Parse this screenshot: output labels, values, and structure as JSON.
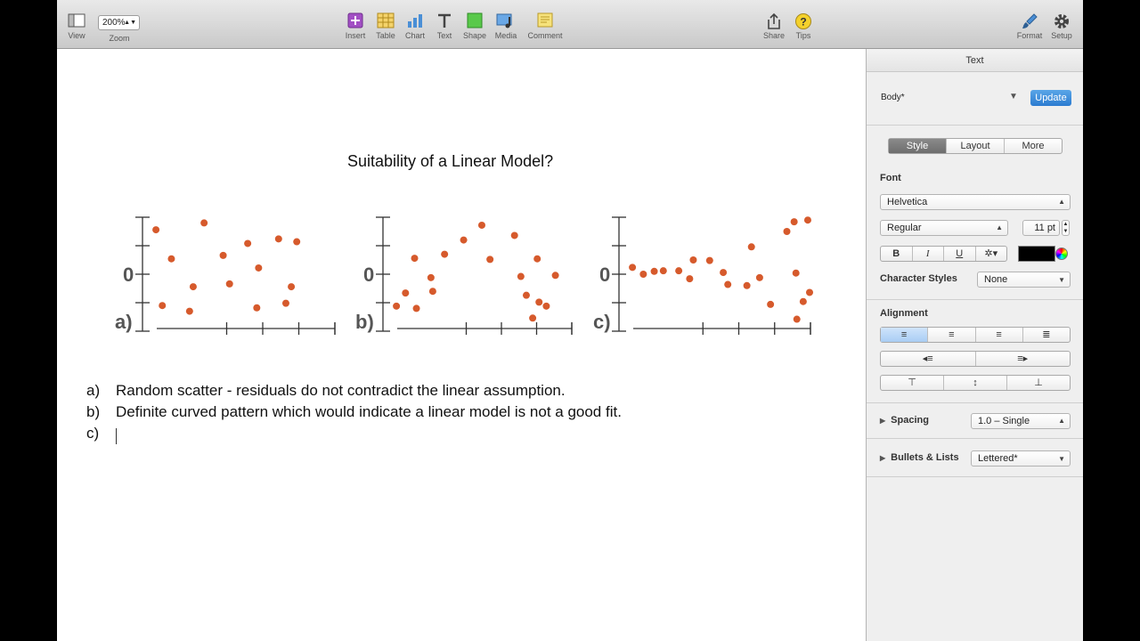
{
  "toolbar": {
    "view": "View",
    "zoom_label": "Zoom",
    "zoom_value": "200%",
    "insert": "Insert",
    "table": "Table",
    "chart": "Chart",
    "text": "Text",
    "shape": "Shape",
    "media": "Media",
    "comment": "Comment",
    "share": "Share",
    "tips": "Tips",
    "format": "Format",
    "setup": "Setup"
  },
  "document": {
    "title": "Suitability of a Linear Model?",
    "plots": [
      {
        "label": "a)",
        "zero": "0",
        "points": [
          [
            0.05,
            0.78
          ],
          [
            0.12,
            -0.55
          ],
          [
            0.22,
            0.27
          ],
          [
            0.42,
            -0.65
          ],
          [
            0.46,
            -0.22
          ],
          [
            0.58,
            0.9
          ],
          [
            0.79,
            0.33
          ],
          [
            0.86,
            -0.17
          ],
          [
            1.06,
            0.54
          ],
          [
            1.16,
            -0.59
          ],
          [
            1.18,
            0.11
          ],
          [
            1.4,
            0.62
          ],
          [
            1.48,
            -0.51
          ],
          [
            1.54,
            -0.22
          ],
          [
            1.6,
            0.57
          ]
        ]
      },
      {
        "label": "b)",
        "zero": "0",
        "points": [
          [
            0.05,
            -0.56
          ],
          [
            0.15,
            -0.33
          ],
          [
            0.25,
            0.28
          ],
          [
            0.27,
            -0.6
          ],
          [
            0.43,
            -0.06
          ],
          [
            0.45,
            -0.3
          ],
          [
            0.58,
            0.35
          ],
          [
            0.79,
            0.6
          ],
          [
            0.99,
            0.86
          ],
          [
            1.08,
            0.26
          ],
          [
            1.35,
            0.68
          ],
          [
            1.42,
            -0.04
          ],
          [
            1.48,
            -0.37
          ],
          [
            1.55,
            -0.77
          ],
          [
            1.6,
            0.27
          ],
          [
            1.62,
            -0.49
          ],
          [
            1.7,
            -0.56
          ],
          [
            1.8,
            -0.02
          ]
        ]
      },
      {
        "label": "c)",
        "zero": "0",
        "points": [
          [
            0.05,
            0.12
          ],
          [
            0.17,
            0.0
          ],
          [
            0.29,
            0.05
          ],
          [
            0.39,
            0.06
          ],
          [
            0.56,
            0.06
          ],
          [
            0.68,
            -0.08
          ],
          [
            0.72,
            0.25
          ],
          [
            0.9,
            0.24
          ],
          [
            1.05,
            0.03
          ],
          [
            1.1,
            -0.18
          ],
          [
            1.31,
            -0.2
          ],
          [
            1.36,
            0.48
          ],
          [
            1.45,
            -0.06
          ],
          [
            1.57,
            -0.53
          ],
          [
            1.75,
            0.75
          ],
          [
            1.83,
            0.92
          ],
          [
            1.85,
            0.02
          ],
          [
            1.86,
            -0.79
          ],
          [
            1.93,
            -0.48
          ],
          [
            1.98,
            0.95
          ],
          [
            2.0,
            -0.32
          ]
        ]
      }
    ],
    "answers": [
      {
        "letter": "a)",
        "text": "Random scatter - residuals do not contradict the linear assumption."
      },
      {
        "letter": "b)",
        "text": "Definite curved pattern which would indicate a linear model is not a good fit."
      },
      {
        "letter": "c)",
        "text": ""
      }
    ],
    "dot_color": "#d65a2c"
  },
  "inspector": {
    "header": "Text",
    "paragraph_style": "Body*",
    "update_label": "Update",
    "tabs": [
      "Style",
      "Layout",
      "More"
    ],
    "font_label": "Font",
    "font_family": "Helvetica",
    "font_typeface": "Regular",
    "font_size": "11 pt",
    "bold": "B",
    "italic": "I",
    "underline": "U",
    "text_color": "#000000",
    "char_styles_label": "Character Styles",
    "char_styles_value": "None",
    "alignment_label": "Alignment",
    "spacing_label": "Spacing",
    "spacing_value": "1.0 – Single",
    "bullets_label": "Bullets & Lists",
    "bullets_value": "Lettered*"
  }
}
